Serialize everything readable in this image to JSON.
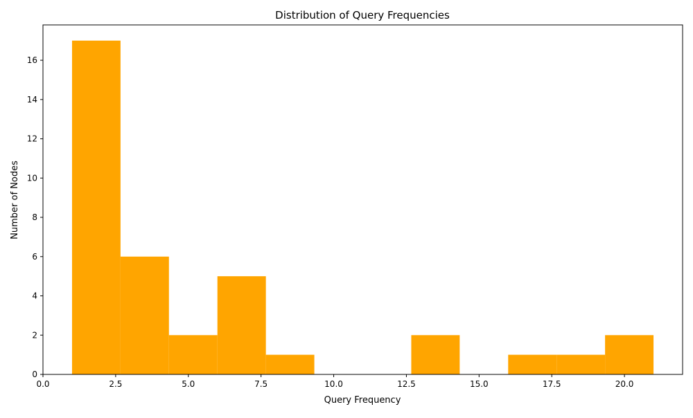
{
  "chart_data": {
    "type": "bar",
    "title": "Distribution of Query Frequencies",
    "xlabel": "Query Frequency",
    "ylabel": "Number of Nodes",
    "bins": [
      {
        "start": 1.0,
        "end": 2.667,
        "count": 17
      },
      {
        "start": 2.667,
        "end": 4.333,
        "count": 6
      },
      {
        "start": 4.333,
        "end": 6.0,
        "count": 2
      },
      {
        "start": 6.0,
        "end": 7.667,
        "count": 5
      },
      {
        "start": 7.667,
        "end": 9.333,
        "count": 1
      },
      {
        "start": 9.333,
        "end": 11.0,
        "count": 0
      },
      {
        "start": 11.0,
        "end": 12.667,
        "count": 0
      },
      {
        "start": 12.667,
        "end": 14.333,
        "count": 2
      },
      {
        "start": 14.333,
        "end": 16.0,
        "count": 0
      },
      {
        "start": 16.0,
        "end": 17.667,
        "count": 1
      },
      {
        "start": 17.667,
        "end": 19.333,
        "count": 1
      },
      {
        "start": 19.333,
        "end": 21.0,
        "count": 2
      }
    ],
    "xlim": [
      0,
      22
    ],
    "ylim": [
      0,
      17.8
    ],
    "xticks": [
      "0.0",
      "2.5",
      "5.0",
      "7.5",
      "10.0",
      "12.5",
      "15.0",
      "17.5",
      "20.0"
    ],
    "yticks": [
      "0",
      "2",
      "4",
      "6",
      "8",
      "10",
      "12",
      "14",
      "16"
    ],
    "bar_color": "#FFA500",
    "grid": false,
    "legend": "none"
  }
}
